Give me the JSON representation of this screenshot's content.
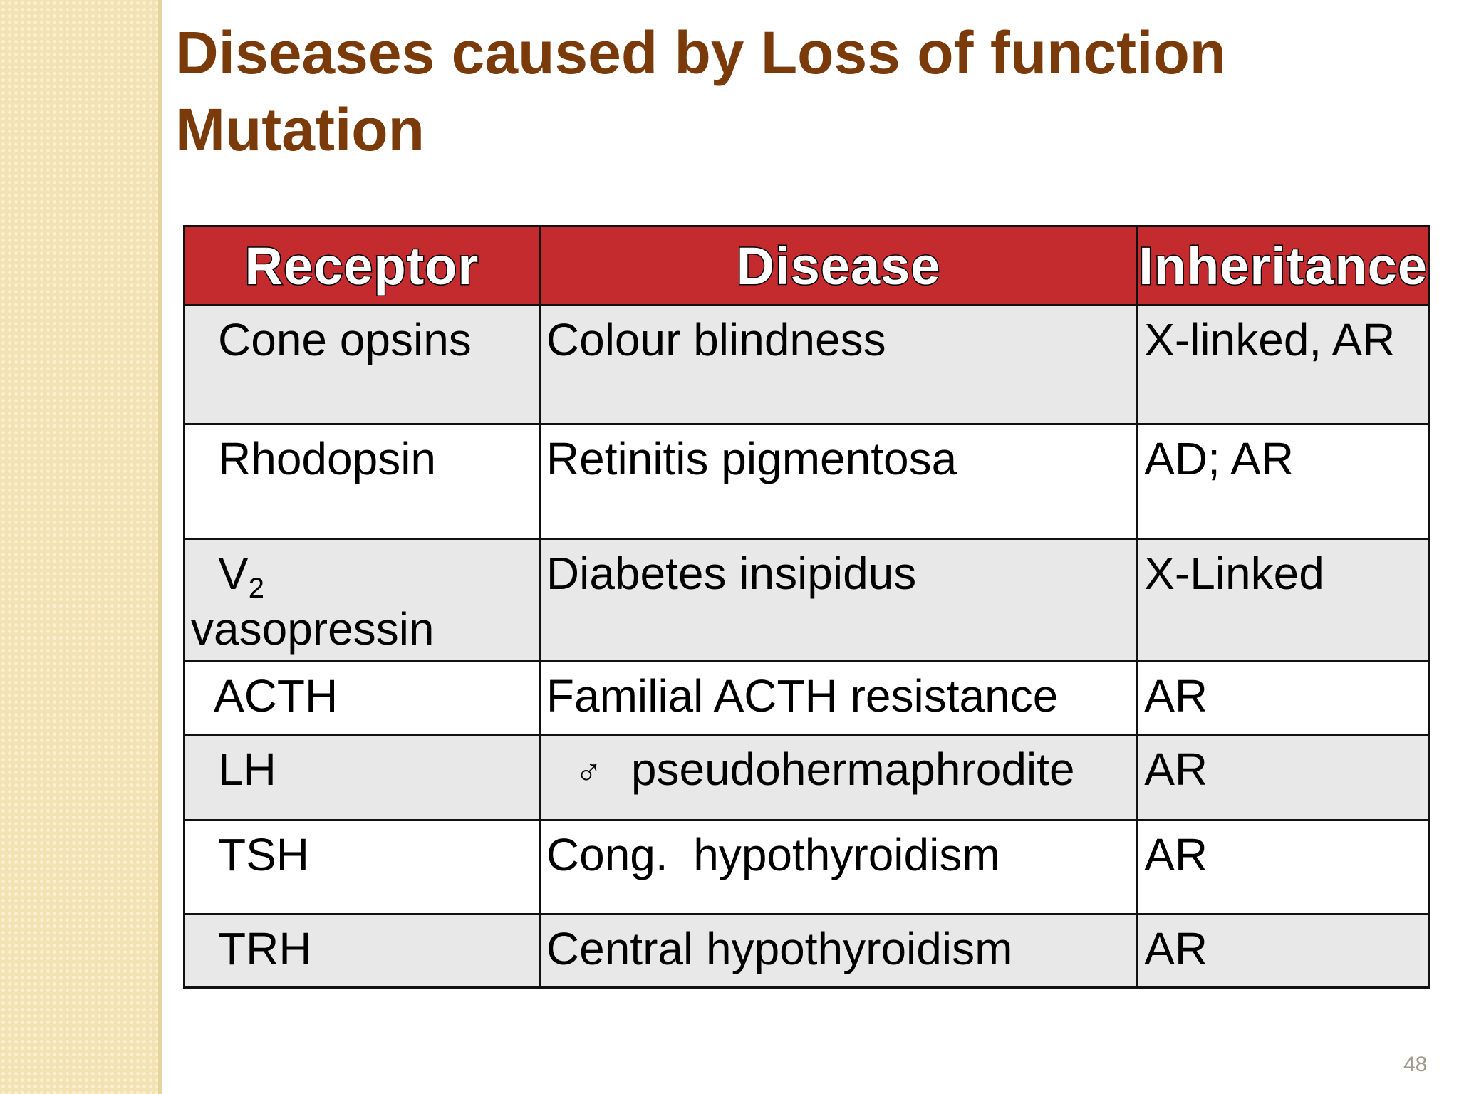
{
  "title": {
    "line1": "Diseases caused by  Loss of function",
    "line2": "Mutation"
  },
  "table": {
    "headers": [
      "Receptor",
      "Disease",
      "Inheritance"
    ],
    "rows": [
      {
        "receptor": "Cone opsins",
        "disease": "Colour blindness",
        "inheritance": "X-linked, AR"
      },
      {
        "receptor": "Rhodopsin",
        "disease": "Retinitis pigmentosa",
        "inheritance": "AD; AR"
      },
      {
        "receptor": "V",
        "receptor_sub": "2",
        "receptor_line2": "vasopressin",
        "disease": "Diabetes insipidus",
        "inheritance": "X-Linked"
      },
      {
        "receptor": "ACTH",
        "disease": "Familial ACTH resistance",
        "inheritance": "AR"
      },
      {
        "receptor": "LH",
        "disease_symbol": "♂",
        "disease": "pseudohermaphrodite",
        "inheritance": "AR"
      },
      {
        "receptor": "TSH",
        "disease": "Cong.  hypothyroidism",
        "inheritance": "AR"
      },
      {
        "receptor": "TRH",
        "disease": "Central hypothyroidism",
        "inheritance": "AR"
      }
    ]
  },
  "page_number": "48",
  "colors": {
    "title": "#7a3a0a",
    "header_bg": "#c42b2e",
    "row_alt": "#e8e8e8"
  }
}
